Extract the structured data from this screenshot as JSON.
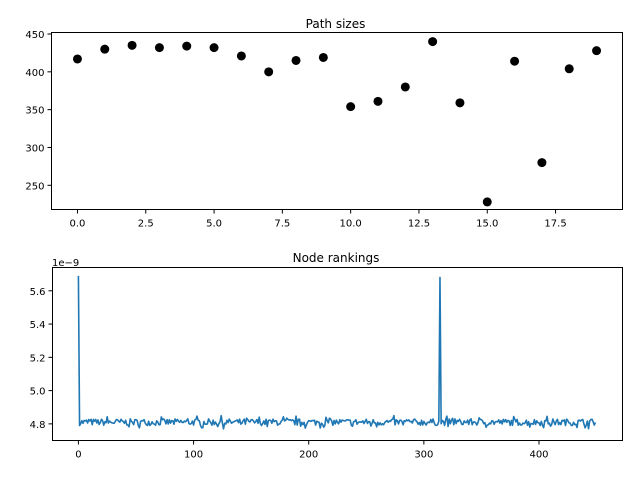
{
  "chart_data": [
    {
      "type": "scatter",
      "title": "Path sizes",
      "xlabel": "",
      "ylabel": "",
      "xlim": [
        -0.95,
        19.95
      ],
      "ylim": [
        218,
        452
      ],
      "xticks": [
        0.0,
        2.5,
        5.0,
        7.5,
        10.0,
        12.5,
        15.0,
        17.5
      ],
      "xtick_labels": [
        "0.0",
        "2.5",
        "5.0",
        "7.5",
        "10.0",
        "12.5",
        "15.0",
        "17.5"
      ],
      "yticks": [
        250,
        300,
        350,
        400,
        450
      ],
      "ytick_labels": [
        "250",
        "300",
        "350",
        "400",
        "450"
      ],
      "marker_color": "#000000",
      "x": [
        0,
        1,
        2,
        3,
        4,
        5,
        6,
        7,
        8,
        9,
        10,
        11,
        12,
        13,
        14,
        15,
        16,
        17,
        18,
        19
      ],
      "y": [
        417,
        430,
        435,
        432,
        434,
        432,
        421,
        400,
        415,
        419,
        354,
        361,
        380,
        440,
        359,
        228,
        414,
        280,
        404,
        428
      ]
    },
    {
      "type": "line",
      "title": "Node rankings",
      "xlabel": "",
      "ylabel": "",
      "offset_label": "1e−9",
      "xlim": [
        -22.5,
        472.5
      ],
      "ylim": [
        4.7,
        5.74
      ],
      "xticks": [
        0,
        100,
        200,
        300,
        400
      ],
      "xtick_labels": [
        "0",
        "100",
        "200",
        "300",
        "400"
      ],
      "yticks": [
        4.8,
        5.0,
        5.2,
        5.4,
        5.6
      ],
      "ytick_labels": [
        "4.8",
        "5.0",
        "5.2",
        "5.4",
        "5.6"
      ],
      "line_color": "#1f77b4",
      "baseline": 4.81,
      "noise_amplitude": 0.025,
      "n_points": 450,
      "peaks": [
        {
          "x": 0,
          "y": 5.69
        },
        {
          "x": 314,
          "y": 5.68
        }
      ]
    }
  ]
}
